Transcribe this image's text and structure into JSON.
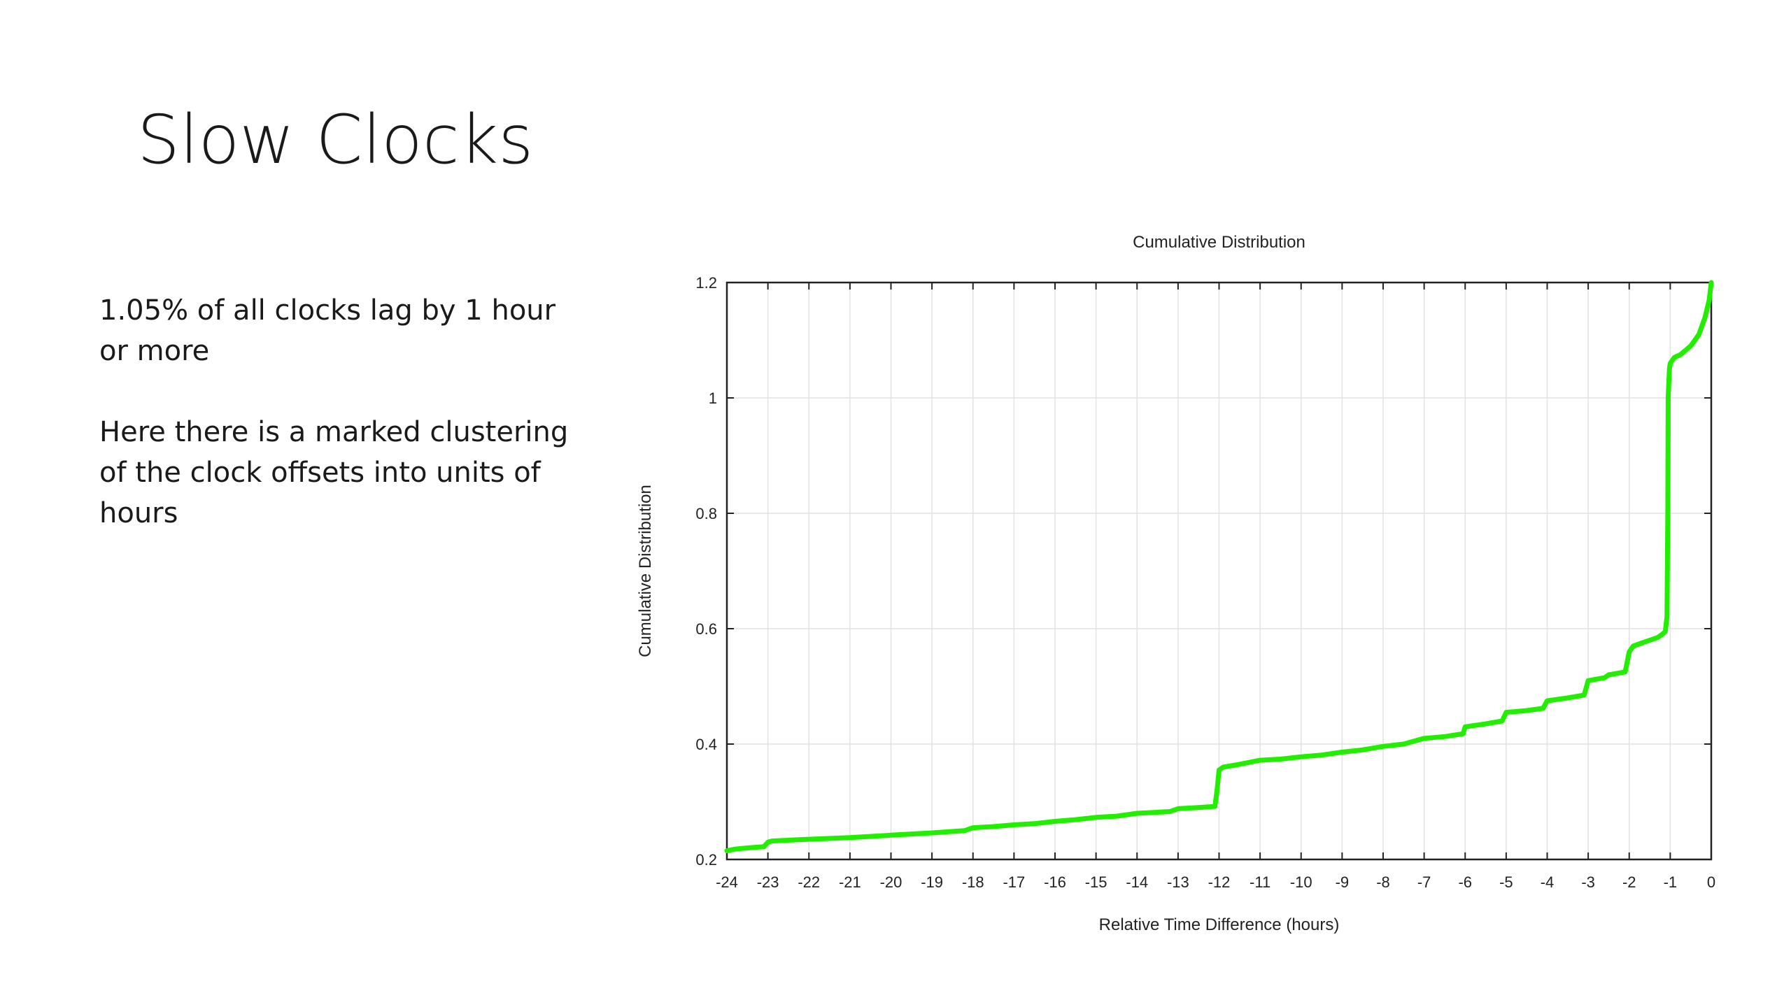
{
  "slide": {
    "title": "Slow Clocks",
    "paragraphs": [
      "1.05% of all clocks lag by 1 hour or more",
      "Here there is a marked clustering of the clock offsets into units of hours"
    ]
  },
  "colors": {
    "series": "#22ee00",
    "grid": "#e2e2e2",
    "axis": "#222222"
  },
  "chart_data": {
    "type": "line",
    "title": "Cumulative Distribution",
    "xlabel": "Relative Time Difference (hours)",
    "ylabel": "Cumulative Distribution",
    "xlim": [
      -24,
      0
    ],
    "ylim": [
      0.2,
      1.2
    ],
    "xticks": [
      -24,
      -23,
      -22,
      -21,
      -20,
      -19,
      -18,
      -17,
      -16,
      -15,
      -14,
      -13,
      -12,
      -11,
      -10,
      -9,
      -8,
      -7,
      -6,
      -5,
      -4,
      -3,
      -2,
      -1,
      0
    ],
    "yticks": [
      0.2,
      0.4,
      0.6,
      0.8,
      1,
      1.2
    ],
    "grid": true,
    "legend": "none",
    "series": [
      {
        "x": [
          -24,
          -23.8,
          -23.5,
          -23.1,
          -23.0,
          -22.9,
          -22,
          -21,
          -20,
          -19,
          -18.2,
          -18.0,
          -17.5,
          -17.0,
          -16.5,
          -16.0,
          -15.5,
          -15.0,
          -14.5,
          -14.0,
          -13.2,
          -13.0,
          -12.5,
          -12.1,
          -12.05,
          -12.0,
          -11.9,
          -11.5,
          -11.0,
          -10.5,
          -10.0,
          -9.5,
          -9.0,
          -8.5,
          -8.0,
          -7.5,
          -7.0,
          -6.5,
          -6.05,
          -6.0,
          -5.5,
          -5.1,
          -5.0,
          -4.5,
          -4.1,
          -4.0,
          -3.5,
          -3.1,
          -3.0,
          -2.6,
          -2.5,
          -2.1,
          -2.0,
          -1.9,
          -1.7,
          -1.5,
          -1.3,
          -1.2,
          -1.12,
          -1.08,
          -1.06,
          -1.05,
          -1.02,
          -1.0,
          -0.9,
          -0.75,
          -0.5,
          -0.3,
          -0.15,
          -0.05,
          0
        ],
        "y": [
          0.215,
          0.218,
          0.22,
          0.222,
          0.23,
          0.232,
          0.235,
          0.238,
          0.242,
          0.246,
          0.25,
          0.255,
          0.257,
          0.26,
          0.262,
          0.266,
          0.269,
          0.273,
          0.275,
          0.28,
          0.283,
          0.288,
          0.29,
          0.292,
          0.32,
          0.355,
          0.36,
          0.365,
          0.372,
          0.374,
          0.378,
          0.381,
          0.386,
          0.39,
          0.396,
          0.4,
          0.41,
          0.413,
          0.418,
          0.43,
          0.435,
          0.44,
          0.455,
          0.458,
          0.462,
          0.475,
          0.48,
          0.485,
          0.51,
          0.515,
          0.52,
          0.525,
          0.56,
          0.57,
          0.575,
          0.58,
          0.585,
          0.59,
          0.595,
          0.62,
          0.8,
          1.0,
          1.05,
          1.06,
          1.07,
          1.075,
          1.09,
          1.11,
          1.14,
          1.17,
          1.2
        ]
      }
    ]
  }
}
